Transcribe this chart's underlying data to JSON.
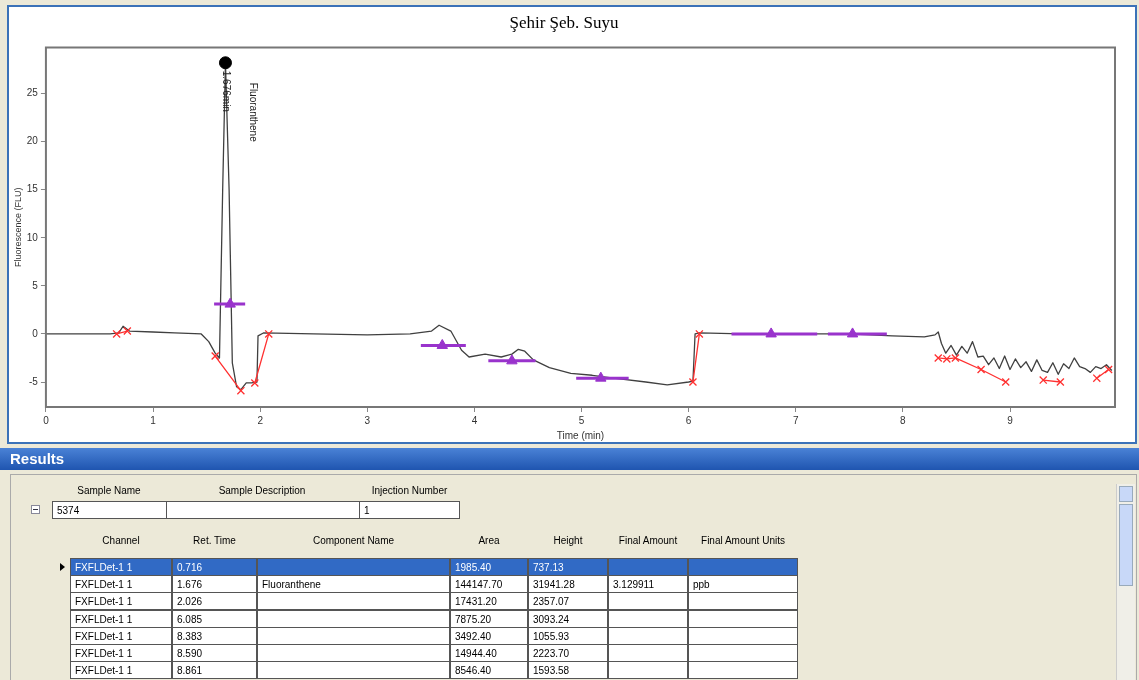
{
  "chart_data": {
    "type": "line",
    "title": "Şehir Şeb. Suyu",
    "xlabel": "Time (min)",
    "ylabel": "Fluorescence (FLU)",
    "xlim": [
      0,
      9.98
    ],
    "xticks": [
      0,
      1,
      2,
      3,
      4,
      5,
      6,
      7,
      8,
      9
    ],
    "ylim": [
      -7.6,
      29.8
    ],
    "yticks": [
      -5,
      0,
      5,
      10,
      15,
      20,
      25
    ],
    "grid": false,
    "legend": false,
    "series": [
      {
        "color": "#404040",
        "marker": "none",
        "x": [
          0,
          0.3,
          0.6,
          0.68,
          0.72,
          0.78,
          1.0,
          1.2,
          1.45,
          1.52,
          1.58,
          1.62,
          1.65,
          1.676,
          1.71,
          1.74,
          1.78,
          1.82,
          1.87,
          1.92,
          1.97,
          1.98,
          2.03,
          2.5,
          3.0,
          3.4,
          3.6,
          3.67,
          3.78,
          3.88,
          3.95,
          4.1,
          4.25,
          4.35,
          4.41,
          4.47,
          4.55,
          4.7,
          4.9,
          5.1,
          5.3,
          5.6,
          5.8,
          6.0,
          6.04,
          6.06,
          6.1,
          6.5,
          7.0,
          7.5,
          7.9,
          8.2,
          8.3,
          8.33,
          8.36,
          8.4,
          8.45,
          8.5,
          8.55,
          8.6,
          8.65,
          8.7,
          8.75,
          8.8,
          8.85,
          8.9,
          8.95,
          9.0,
          9.05,
          9.1,
          9.15,
          9.2,
          9.25,
          9.3,
          9.35,
          9.4,
          9.45,
          9.5,
          9.55,
          9.6,
          9.65,
          9.7,
          9.75,
          9.8,
          9.85,
          9.9,
          9.95
        ],
        "values": [
          0,
          0,
          0,
          0.1,
          0.8,
          0.3,
          0.2,
          0.1,
          0,
          -0.8,
          -2,
          -2.5,
          15,
          28.2,
          15,
          -3,
          -5.5,
          -5.8,
          -5.1,
          -5.1,
          -5,
          -0.2,
          0.1,
          0,
          -0.1,
          0,
          0.3,
          0.9,
          0.3,
          -1.7,
          -2.4,
          -2.1,
          -2.4,
          -2.1,
          -1.6,
          -1.8,
          -2.7,
          -3.5,
          -4.1,
          -4.3,
          -4.6,
          -5,
          -5.3,
          -5,
          -4.9,
          0,
          0.1,
          0,
          0,
          0,
          -0.2,
          -0.3,
          -0.1,
          0.2,
          -1,
          -2,
          -1.2,
          -2.2,
          -1.3,
          -2,
          -0.8,
          -2.4,
          -2.3,
          -3.2,
          -2.5,
          -3.6,
          -2.3,
          -3.7,
          -2.6,
          -3.5,
          -2.9,
          -3.9,
          -2.7,
          -3.8,
          -4,
          -3,
          -4.2,
          -3.1,
          -3.6,
          -2.5,
          -3.4,
          -3.6,
          -4,
          -3.4,
          -3.6,
          -3.2,
          -3.8
        ]
      },
      {
        "color": "#ff3030",
        "marker": "cross",
        "x": [
          0.66,
          0.76,
          0.8,
          1.58,
          1.82,
          1.85,
          1.95,
          2.08,
          2.1,
          6.04,
          6.1,
          6.2,
          8.33,
          8.41,
          8.49,
          8.73,
          8.96,
          9.1,
          9.31,
          9.47,
          9.6,
          9.81,
          9.92
        ],
        "values": [
          0,
          0.3,
          null,
          -2.3,
          -5.9,
          null,
          -5.1,
          0,
          null,
          -5,
          0,
          null,
          -2.5,
          -2.6,
          -2.5,
          -3.7,
          -5,
          null,
          -4.8,
          -5,
          null,
          -4.6,
          -3.7
        ]
      },
      {
        "color": "#9933cc",
        "marker": "none",
        "x": [
          1.57,
          1.86,
          1.9,
          3.5,
          3.92,
          4.0,
          4.13,
          4.57,
          4.6,
          4.95,
          5.44,
          5.5,
          6.4,
          7.2,
          7.25,
          7.3,
          7.85
        ],
        "values": [
          3.1,
          3.1,
          null,
          -1.2,
          -1.2,
          null,
          -2.8,
          -2.8,
          null,
          -4.6,
          -4.6,
          null,
          0,
          0,
          null,
          0,
          0
        ]
      },
      {
        "type": "scatter",
        "color": "#9933cc",
        "marker": "triangle",
        "x": [
          1.72,
          3.7,
          4.35,
          5.18,
          6.77,
          7.53
        ],
        "values": [
          3.1,
          -1.2,
          -2.8,
          -4.6,
          0,
          0
        ]
      },
      {
        "type": "scatter",
        "color": "#000000",
        "marker": "circle",
        "x": [
          1.676
        ],
        "values": [
          28.2
        ]
      }
    ],
    "annotations": [
      {
        "text": "1.676min",
        "x": 1.676,
        "y": 28.2
      },
      "Fluoranthene",
      "Results",
      "Sample Name",
      "Sample Description",
      "Injection Number",
      "5374",
      "1",
      "Channel",
      "Ret. Time",
      "Component Name",
      "Area",
      "Height",
      "Final Amount",
      "Final Amount Units",
      "FXFLDet-1 1",
      "0.716",
      "1985.40",
      "737.13",
      "FXFLDet-1 1",
      "1.676",
      "Fluoranthene",
      "144147.70",
      "31941.28",
      "3.129911",
      "ppb",
      "FXFLDet-1 1",
      "2.026",
      "17431.20",
      "2357.07",
      "FXFLDet-1 1",
      "6.085",
      "7875.20",
      "3093.24",
      "FXFLDet-1 1",
      "8.383",
      "3492.40",
      "1055.93",
      "FXFLDet-1 1",
      "8.590",
      "14944.40",
      "2223.70",
      "FXFLDet-1 1",
      "8.861",
      "8546.40",
      "1593.58"
    ]
  }
}
